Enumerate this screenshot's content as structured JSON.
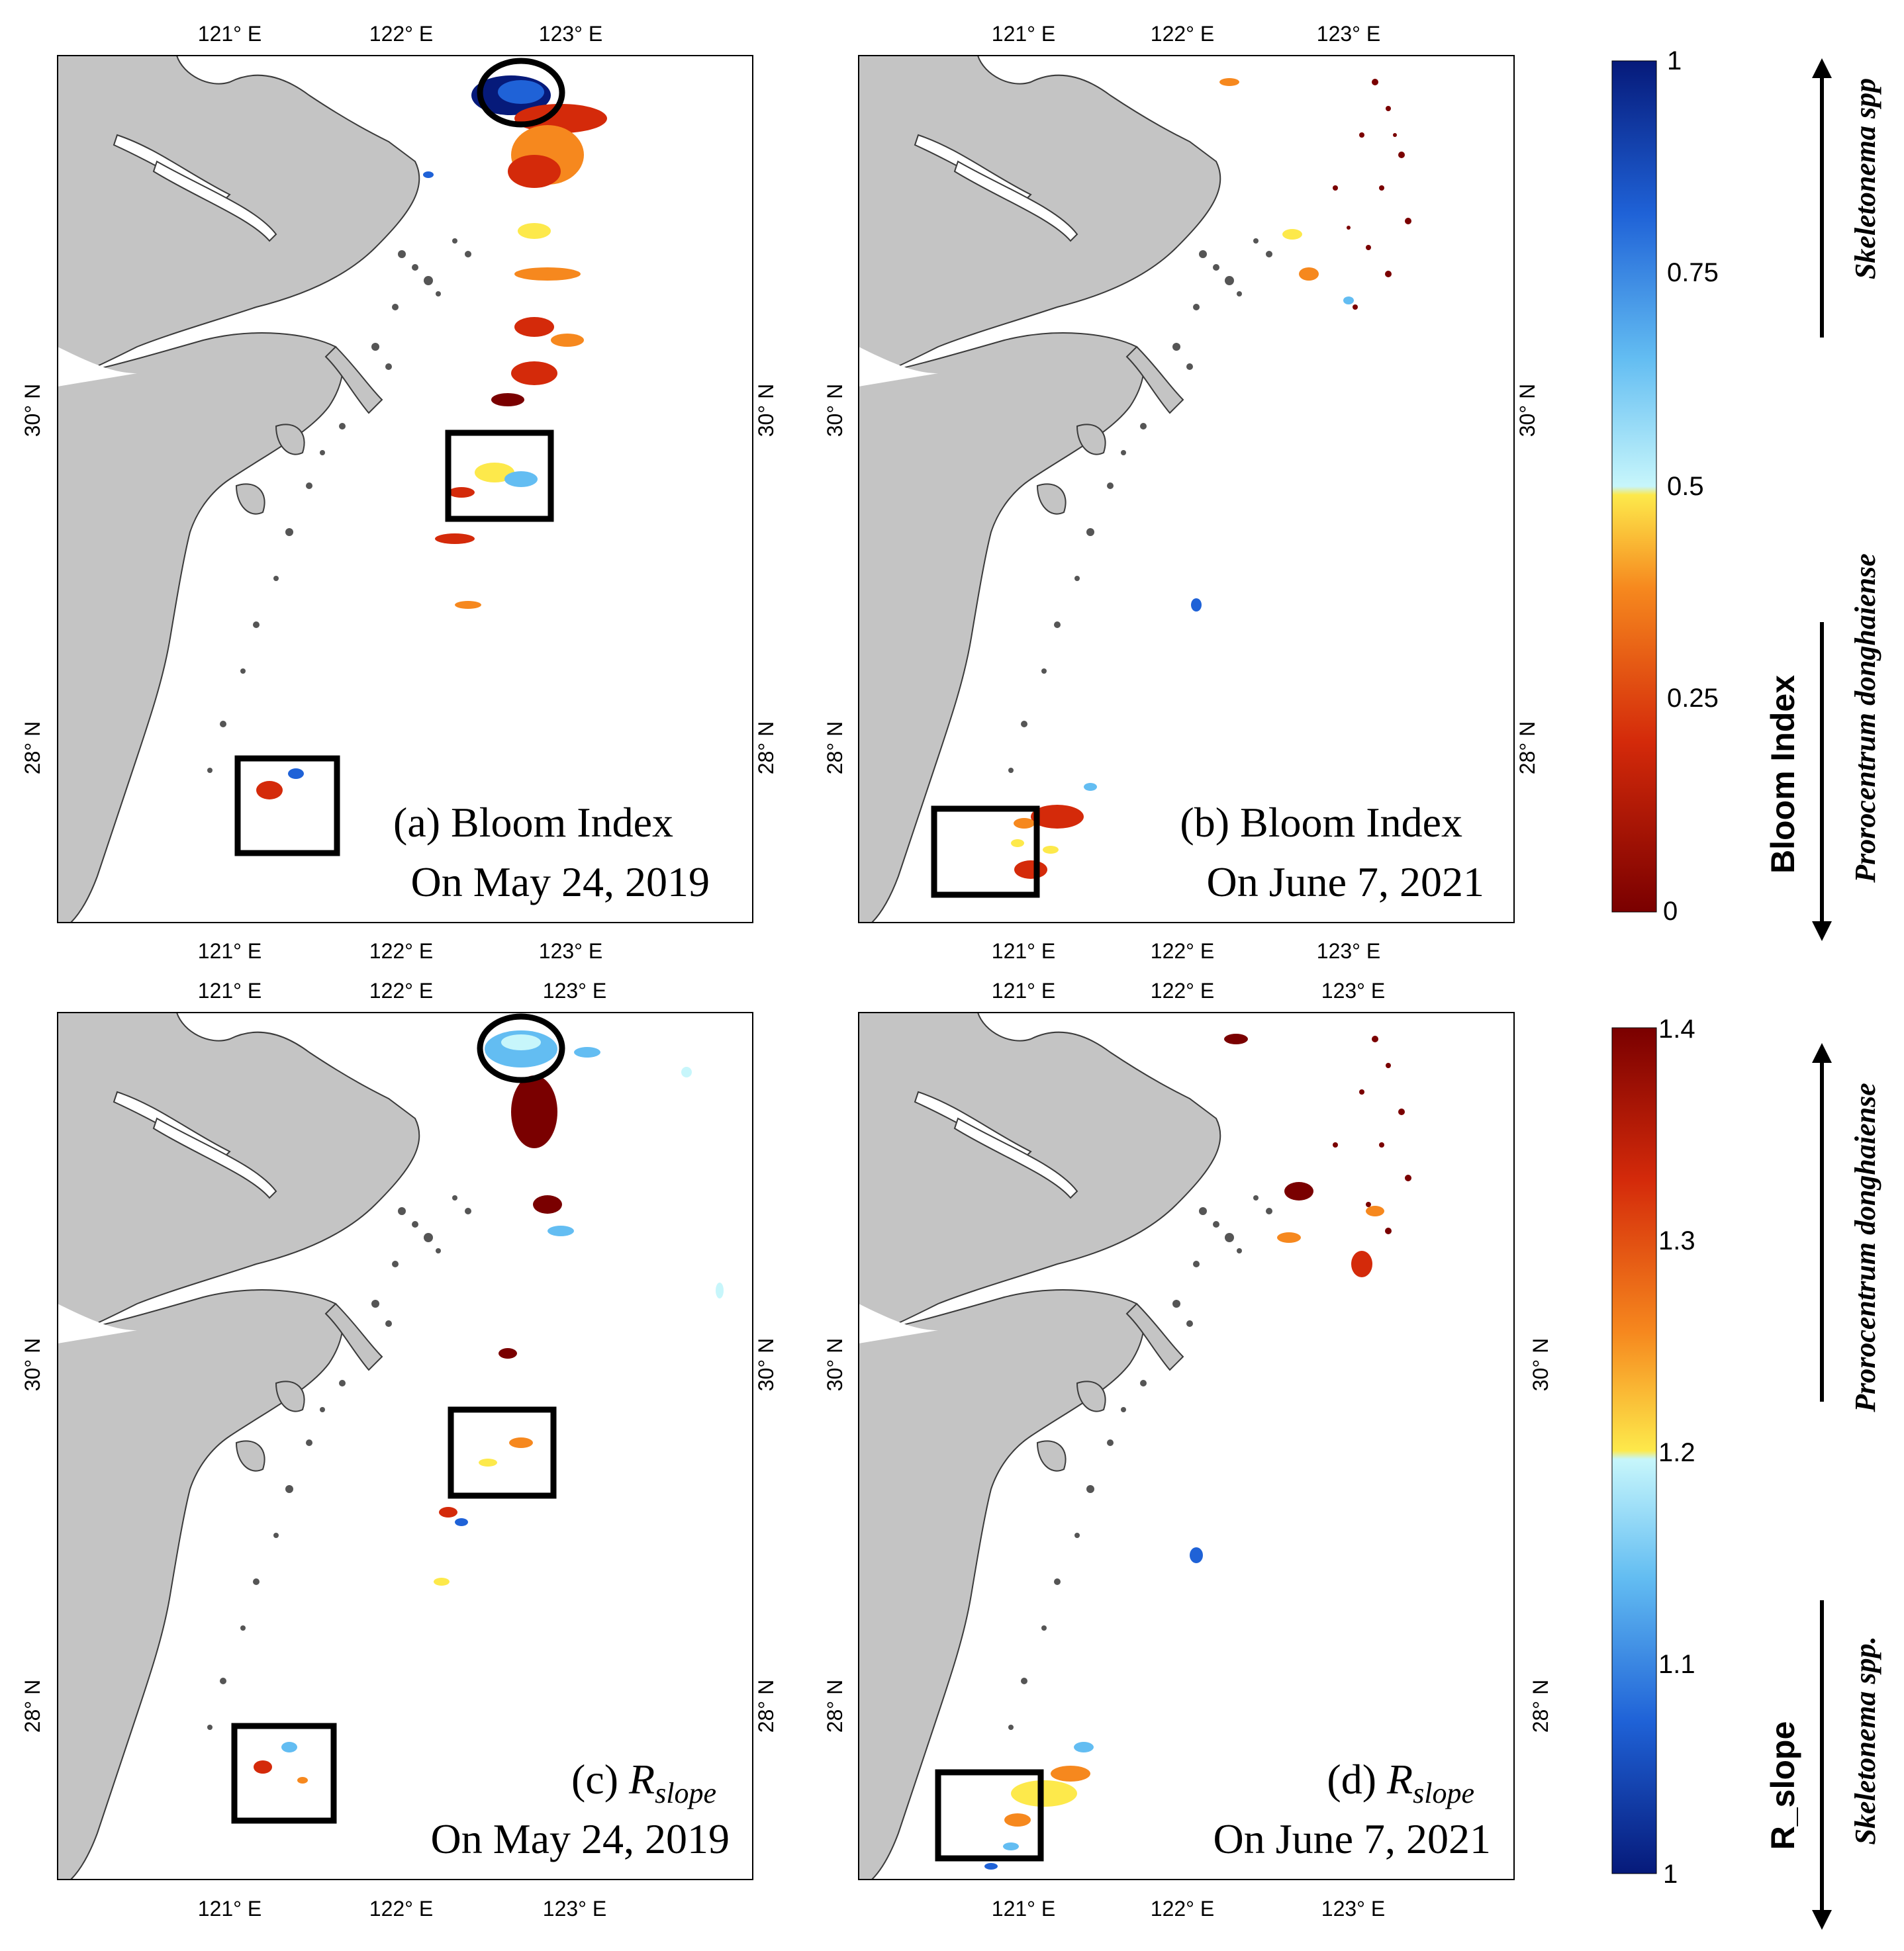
{
  "figure": {
    "panels": [
      {
        "id": "a",
        "caption_main": "(a) Bloom Index",
        "caption_date": "On May 24, 2019",
        "scale": "bloom"
      },
      {
        "id": "b",
        "caption_main": "(b) Bloom Index",
        "caption_date": "On June 7, 2021",
        "scale": "bloom"
      },
      {
        "id": "c",
        "caption_pre": "(c) ",
        "caption_var": "R",
        "caption_sub": "slope",
        "caption_date": "On May 24, 2019",
        "scale": "rslope"
      },
      {
        "id": "d",
        "caption_pre": "(d) ",
        "caption_var": "R",
        "caption_sub": "slope",
        "caption_date": "On June 7, 2021",
        "scale": "rslope"
      }
    ],
    "axes": {
      "lon_ticks": [
        "121° E",
        "122° E",
        "123° E"
      ],
      "lat_ticks": [
        "30° N",
        "28° N"
      ]
    },
    "colorbars": {
      "bloom": {
        "label": "Bloom Index",
        "ticks": [
          "1",
          "0.75",
          "0.5",
          "0.25",
          "0"
        ],
        "range": [
          0,
          1
        ],
        "species_high": "Skeletonema spp",
        "species_low": "Prorocentrum donghaiense"
      },
      "rslope": {
        "label": "R_slope",
        "ticks": [
          "1.4",
          "1.3",
          "1.2",
          "1.1",
          "1"
        ],
        "range": [
          1,
          1.4
        ],
        "species_high": "Prorocentrum donghaiense",
        "species_low": "Skeletonema spp."
      }
    },
    "colors": {
      "land": "#c4c4c4",
      "sea": "#ffffff",
      "coastline": "#3a3a3a",
      "frame": "#000000",
      "cmap": [
        "#7a0000",
        "#d42a0a",
        "#f6881e",
        "#fde94b",
        "#c7f6fb",
        "#63bdf2",
        "#1f62d7",
        "#061a7a"
      ]
    }
  }
}
